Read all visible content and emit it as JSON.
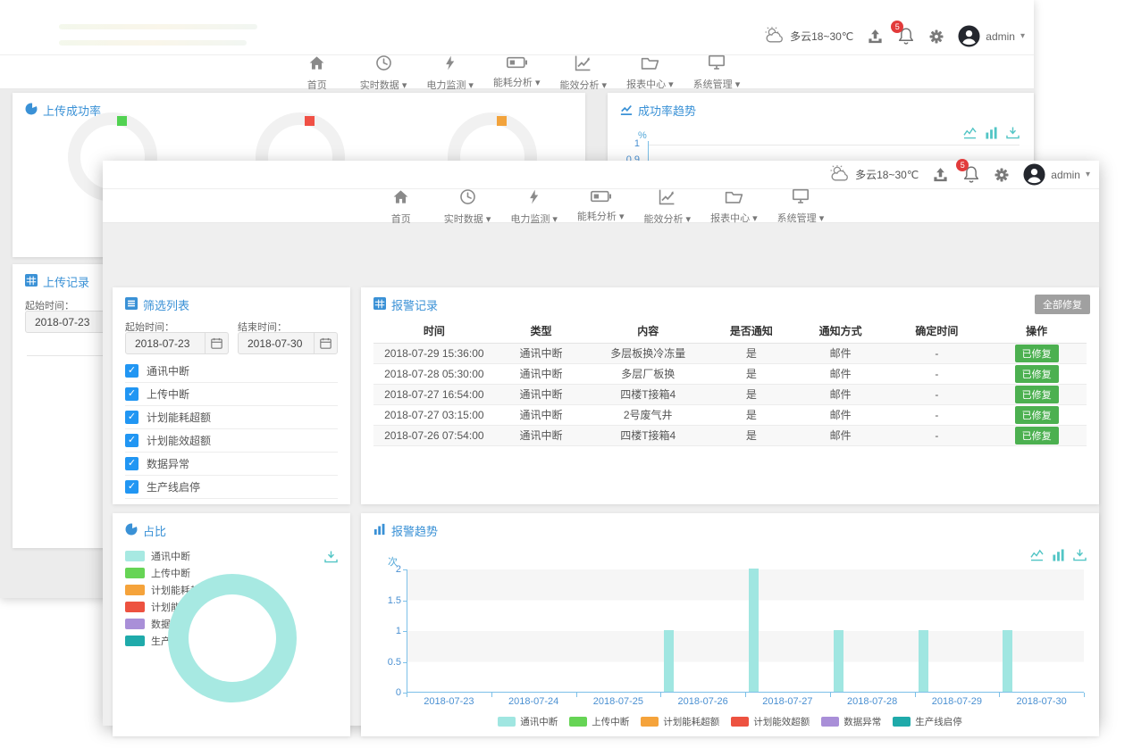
{
  "header": {
    "weather": "多云18~30℃",
    "notification_count": "5",
    "username": "admin"
  },
  "nav": {
    "items": [
      {
        "label": "首页",
        "icon": "home",
        "dropdown": false
      },
      {
        "label": "实时数据",
        "icon": "clock",
        "dropdown": true
      },
      {
        "label": "电力监测",
        "icon": "bolt",
        "dropdown": true
      },
      {
        "label": "能耗分析",
        "icon": "battery",
        "dropdown": true
      },
      {
        "label": "能效分析",
        "icon": "trend",
        "dropdown": true
      },
      {
        "label": "报表中心",
        "icon": "folder",
        "dropdown": true
      },
      {
        "label": "系统管理",
        "icon": "monitor",
        "dropdown": true
      }
    ]
  },
  "back_window": {
    "upload_success": {
      "title": "上传成功率",
      "gauges": [
        {
          "marker_color": "#52d252"
        },
        {
          "marker_color": "#f05045"
        },
        {
          "marker_color": "#f2a33c"
        }
      ]
    },
    "success_trend": {
      "title": "成功率趋势",
      "unit": "%",
      "tick1": "1",
      "tick2": "0.9"
    },
    "upload_records": {
      "title": "上传记录",
      "start_label": "起始时间：",
      "start_value": "2018-07-23"
    }
  },
  "front_window": {
    "filter": {
      "title": "筛选列表",
      "start_label": "起始时间：",
      "end_label": "结束时间：",
      "start_value": "2018-07-23",
      "end_value": "2018-07-30",
      "options": [
        {
          "label": "通讯中断",
          "checked": true
        },
        {
          "label": "上传中断",
          "checked": true
        },
        {
          "label": "计划能耗超额",
          "checked": true
        },
        {
          "label": "计划能效超额",
          "checked": true
        },
        {
          "label": "数据异常",
          "checked": true
        },
        {
          "label": "生产线启停",
          "checked": true
        }
      ]
    },
    "alarms": {
      "title": "报警记录",
      "fix_all_label": "全部修复",
      "headers": [
        "时间",
        "类型",
        "内容",
        "是否通知",
        "通知方式",
        "确定时间",
        "操作"
      ],
      "rows": [
        {
          "time": "2018-07-29 15:36:00",
          "type": "通讯中断",
          "content": "多层板换冷冻量",
          "notified": "是",
          "method": "邮件",
          "confirm_time": "-",
          "action": "已修复"
        },
        {
          "time": "2018-07-28 05:30:00",
          "type": "通讯中断",
          "content": "多层厂板换",
          "notified": "是",
          "method": "邮件",
          "confirm_time": "-",
          "action": "已修复"
        },
        {
          "time": "2018-07-27 16:54:00",
          "type": "通讯中断",
          "content": "四楼T接箱4",
          "notified": "是",
          "method": "邮件",
          "confirm_time": "-",
          "action": "已修复"
        },
        {
          "time": "2018-07-27 03:15:00",
          "type": "通讯中断",
          "content": "2号废气井",
          "notified": "是",
          "method": "邮件",
          "confirm_time": "-",
          "action": "已修复"
        },
        {
          "time": "2018-07-26 07:54:00",
          "type": "通讯中断",
          "content": "四楼T接箱4",
          "notified": "是",
          "method": "邮件",
          "confirm_time": "-",
          "action": "已修复"
        }
      ]
    },
    "pie_panel": {
      "title": "占比"
    },
    "trend_panel": {
      "title": "报警趋势"
    }
  },
  "chart_data": [
    {
      "type": "pie",
      "title": "占比",
      "legend_position": "left",
      "slices": [
        {
          "label": "通讯中断",
          "value": 100,
          "color": "#a7e9e2"
        },
        {
          "label": "上传中断",
          "value": 0,
          "color": "#66d455"
        },
        {
          "label": "计划能耗超额",
          "value": 0,
          "color": "#f5a33b"
        },
        {
          "label": "计划能效超额",
          "value": 0,
          "color": "#ed5240"
        },
        {
          "label": "数据异常",
          "value": 0,
          "color": "#a98fd8"
        },
        {
          "label": "生产线启停",
          "value": 0,
          "color": "#1faaaa"
        }
      ]
    },
    {
      "type": "bar",
      "title": "报警趋势",
      "ylabel": "次",
      "ylim": [
        0,
        2
      ],
      "yticks": [
        0,
        0.5,
        1,
        1.5,
        2
      ],
      "grid": "striped-bands",
      "legend_position": "bottom",
      "categories": [
        "2018-07-23",
        "2018-07-24",
        "2018-07-25",
        "2018-07-26",
        "2018-07-27",
        "2018-07-28",
        "2018-07-29",
        "2018-07-30"
      ],
      "series": [
        {
          "name": "通讯中断",
          "color": "#a0e6e1",
          "values": [
            0,
            0,
            0,
            1,
            2,
            1,
            1,
            1
          ]
        },
        {
          "name": "上传中断",
          "color": "#66d455",
          "values": [
            0,
            0,
            0,
            0,
            0,
            0,
            0,
            0
          ]
        },
        {
          "name": "计划能耗超额",
          "color": "#f5a33b",
          "values": [
            0,
            0,
            0,
            0,
            0,
            0,
            0,
            0
          ]
        },
        {
          "name": "计划能效超额",
          "color": "#ed5240",
          "values": [
            0,
            0,
            0,
            0,
            0,
            0,
            0,
            0
          ]
        },
        {
          "name": "数据异常",
          "color": "#a98fd8",
          "values": [
            0,
            0,
            0,
            0,
            0,
            0,
            0,
            0
          ]
        },
        {
          "name": "生产线启停",
          "color": "#1faaaa",
          "values": [
            0,
            0,
            0,
            0,
            0,
            0,
            0,
            0
          ]
        }
      ]
    },
    {
      "type": "line",
      "title": "成功率趋势",
      "ylabel": "%",
      "visible_yticks": [
        "1",
        "0.9"
      ],
      "note": "partially hidden behind front window"
    }
  ],
  "colors": {
    "accent_blue": "#3a91d6",
    "checkbox_blue": "#2196f3",
    "badge_red": "#e23b3b",
    "green_button": "#4cb050",
    "gray_button": "#a0a0a0",
    "toolbox_cyan": "#52c5c5",
    "axis_blue": "#7cc0e8"
  }
}
